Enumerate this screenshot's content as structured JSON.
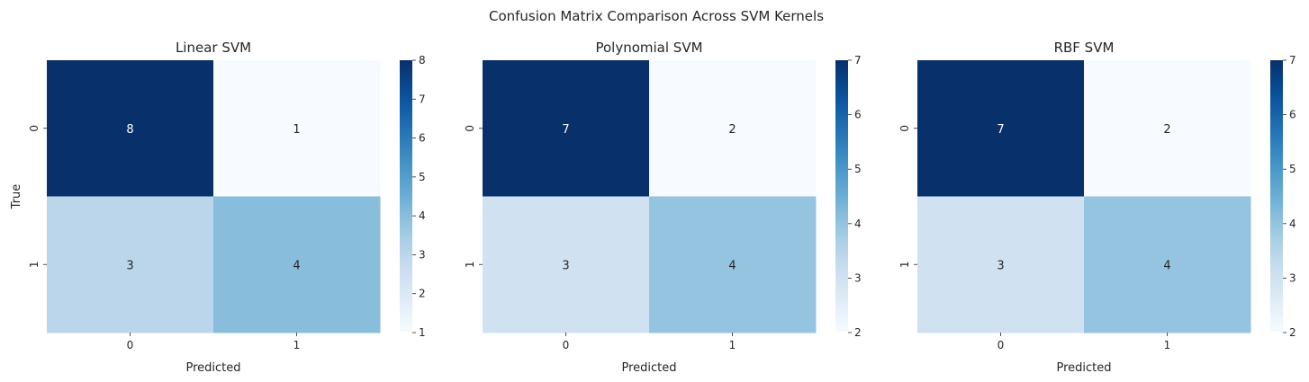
{
  "figure_title": "Confusion Matrix Comparison Across SVM Kernels",
  "chart_data": [
    {
      "type": "heatmap",
      "title": "Linear SVM",
      "xlabel": "Predicted",
      "ylabel": "True",
      "x_categories": [
        "0",
        "1"
      ],
      "y_categories": [
        "0",
        "1"
      ],
      "values": [
        [
          8,
          1
        ],
        [
          3,
          4
        ]
      ],
      "colormap": "Blues",
      "colorbar": {
        "range": [
          1,
          8
        ],
        "ticks": [
          1,
          2,
          3,
          4,
          5,
          6,
          7,
          8
        ]
      }
    },
    {
      "type": "heatmap",
      "title": "Polynomial SVM",
      "xlabel": "Predicted",
      "ylabel": "",
      "x_categories": [
        "0",
        "1"
      ],
      "y_categories": [
        "0",
        "1"
      ],
      "values": [
        [
          7,
          2
        ],
        [
          3,
          4
        ]
      ],
      "colormap": "Blues",
      "colorbar": {
        "range": [
          2,
          7
        ],
        "ticks": [
          2,
          3,
          4,
          5,
          6,
          7
        ]
      }
    },
    {
      "type": "heatmap",
      "title": "RBF SVM",
      "xlabel": "Predicted",
      "ylabel": "",
      "x_categories": [
        "0",
        "1"
      ],
      "y_categories": [
        "0",
        "1"
      ],
      "values": [
        [
          7,
          2
        ],
        [
          3,
          4
        ]
      ],
      "colormap": "Blues",
      "colorbar": {
        "range": [
          2,
          7
        ],
        "ticks": [
          2,
          3,
          4,
          5,
          6,
          7
        ]
      }
    }
  ]
}
